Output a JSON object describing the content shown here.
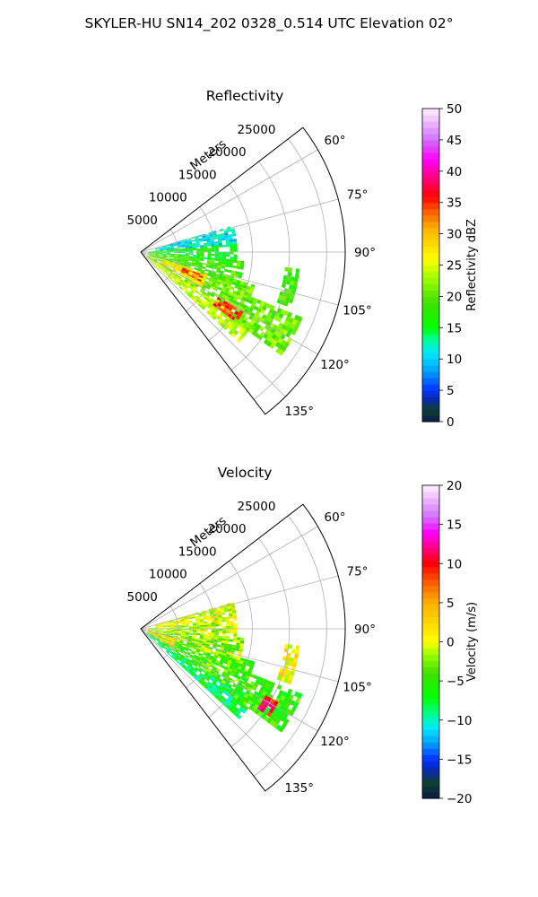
{
  "figure": {
    "title": "SKYLER-HU  SN14_202  0328_0.514 UTC Elevation 02°"
  },
  "chart_data": [
    {
      "type": "heatmap",
      "subtype": "polar-sector-radar-ppi",
      "title": "Reflectivity",
      "range_label": "Meters",
      "range_ticks": [
        "5000",
        "10000",
        "15000",
        "20000",
        "25000"
      ],
      "range_values": [
        5000,
        10000,
        15000,
        20000,
        25000
      ],
      "range_max": 27500,
      "azimuth_range": [
        52.5,
        142.5
      ],
      "azimuth_ticks": [
        "60°",
        "75°",
        "90°",
        "105°",
        "120°",
        "135°"
      ],
      "azimuth_values": [
        60,
        75,
        90,
        105,
        120,
        135
      ],
      "grid": true,
      "colorbar": {
        "label": "Reflectivity dBZ",
        "min": 0,
        "max": 50,
        "ticks": [
          "0",
          "5",
          "10",
          "15",
          "20",
          "25",
          "30",
          "35",
          "40",
          "45",
          "50"
        ],
        "stops": [
          {
            "v": 0,
            "c": "#0b1a4a"
          },
          {
            "v": 2,
            "c": "#0e4030"
          },
          {
            "v": 3.5,
            "c": "#0b2aa8"
          },
          {
            "v": 5,
            "c": "#0030ff"
          },
          {
            "v": 8,
            "c": "#009cff"
          },
          {
            "v": 11,
            "c": "#00e8ff"
          },
          {
            "v": 13.5,
            "c": "#00ff80"
          },
          {
            "v": 15,
            "c": "#00ff00"
          },
          {
            "v": 19,
            "c": "#40e000"
          },
          {
            "v": 23,
            "c": "#a0ff00"
          },
          {
            "v": 26,
            "c": "#ffff00"
          },
          {
            "v": 31,
            "c": "#ffb000"
          },
          {
            "v": 34,
            "c": "#ff5000"
          },
          {
            "v": 36,
            "c": "#ff0000"
          },
          {
            "v": 39,
            "c": "#ff0080"
          },
          {
            "v": 42,
            "c": "#ff00ff"
          },
          {
            "v": 45,
            "c": "#d070ff"
          },
          {
            "v": 50,
            "c": "#fff0ff"
          }
        ]
      },
      "echo_regions": [
        {
          "az": [
            123,
            132
          ],
          "r": [
            1000,
            18000
          ],
          "v": 24
        },
        {
          "az": [
            106,
            123
          ],
          "r": [
            1000,
            16000
          ],
          "v": 21
        },
        {
          "az": [
            95,
            108
          ],
          "r": [
            1000,
            14000
          ],
          "v": 19
        },
        {
          "az": [
            85,
            95
          ],
          "r": [
            1000,
            13000
          ],
          "v": 16
        },
        {
          "az": [
            74,
            85
          ],
          "r": [
            2000,
            13000
          ],
          "v": 11
        },
        {
          "az": [
            112,
            125
          ],
          "r": [
            15000,
            23500
          ],
          "v": 21
        },
        {
          "az": [
            96,
            110
          ],
          "r": [
            19500,
            21500
          ],
          "v": 19
        },
        {
          "az": [
            108,
            120
          ],
          "r": [
            3000,
            9500
          ],
          "v": 27
        },
        {
          "az": [
            120,
            126
          ],
          "r": [
            12000,
            16000
          ],
          "v": 34
        },
        {
          "az": [
            110,
            116
          ],
          "r": [
            6000,
            9000
          ],
          "v": 33
        }
      ]
    },
    {
      "type": "heatmap",
      "subtype": "polar-sector-radar-ppi",
      "title": "Velocity",
      "range_label": "Meters",
      "range_ticks": [
        "5000",
        "10000",
        "15000",
        "20000",
        "25000"
      ],
      "range_values": [
        5000,
        10000,
        15000,
        20000,
        25000
      ],
      "range_max": 27500,
      "azimuth_range": [
        52.5,
        142.5
      ],
      "azimuth_ticks": [
        "60°",
        "75°",
        "90°",
        "105°",
        "120°",
        "135°"
      ],
      "azimuth_values": [
        60,
        75,
        90,
        105,
        120,
        135
      ],
      "grid": true,
      "colorbar": {
        "label": "Velocity (m/s)",
        "min": -20,
        "max": 20,
        "ticks": [
          "−20",
          "−15",
          "−10",
          "−5",
          "0",
          "5",
          "10",
          "15",
          "20"
        ],
        "stops": [
          {
            "v": -20,
            "c": "#0b1a4a"
          },
          {
            "v": -18,
            "c": "#0e4030"
          },
          {
            "v": -16.5,
            "c": "#0b2aa8"
          },
          {
            "v": -15,
            "c": "#0030ff"
          },
          {
            "v": -13,
            "c": "#009cff"
          },
          {
            "v": -11,
            "c": "#00e8ff"
          },
          {
            "v": -9,
            "c": "#00ff80"
          },
          {
            "v": -7,
            "c": "#00ff00"
          },
          {
            "v": -4,
            "c": "#40e000"
          },
          {
            "v": -1.5,
            "c": "#a0ff00"
          },
          {
            "v": 0,
            "c": "#ffff00"
          },
          {
            "v": 5,
            "c": "#ffb000"
          },
          {
            "v": 8,
            "c": "#ff5000"
          },
          {
            "v": 10,
            "c": "#ff0000"
          },
          {
            "v": 12,
            "c": "#ff0080"
          },
          {
            "v": 14,
            "c": "#ff00ff"
          },
          {
            "v": 16,
            "c": "#d070ff"
          },
          {
            "v": 20,
            "c": "#fff0ff"
          }
        ]
      },
      "echo_regions": [
        {
          "az": [
            123,
            132
          ],
          "r": [
            1000,
            18000
          ],
          "v": -8
        },
        {
          "az": [
            106,
            123
          ],
          "r": [
            1000,
            16000
          ],
          "v": -4
        },
        {
          "az": [
            95,
            108
          ],
          "r": [
            1000,
            14000
          ],
          "v": -2
        },
        {
          "az": [
            85,
            95
          ],
          "r": [
            1000,
            13000
          ],
          "v": -1
        },
        {
          "az": [
            74,
            85
          ],
          "r": [
            2000,
            13000
          ],
          "v": 0
        },
        {
          "az": [
            112,
            125
          ],
          "r": [
            15000,
            23500
          ],
          "v": -5
        },
        {
          "az": [
            96,
            110
          ],
          "r": [
            19500,
            21500
          ],
          "v": 1
        },
        {
          "az": [
            105,
            120
          ],
          "r": [
            1000,
            5000
          ],
          "v": 2
        },
        {
          "az": [
            118,
            123
          ],
          "r": [
            19000,
            21000
          ],
          "v": 11
        }
      ]
    }
  ]
}
